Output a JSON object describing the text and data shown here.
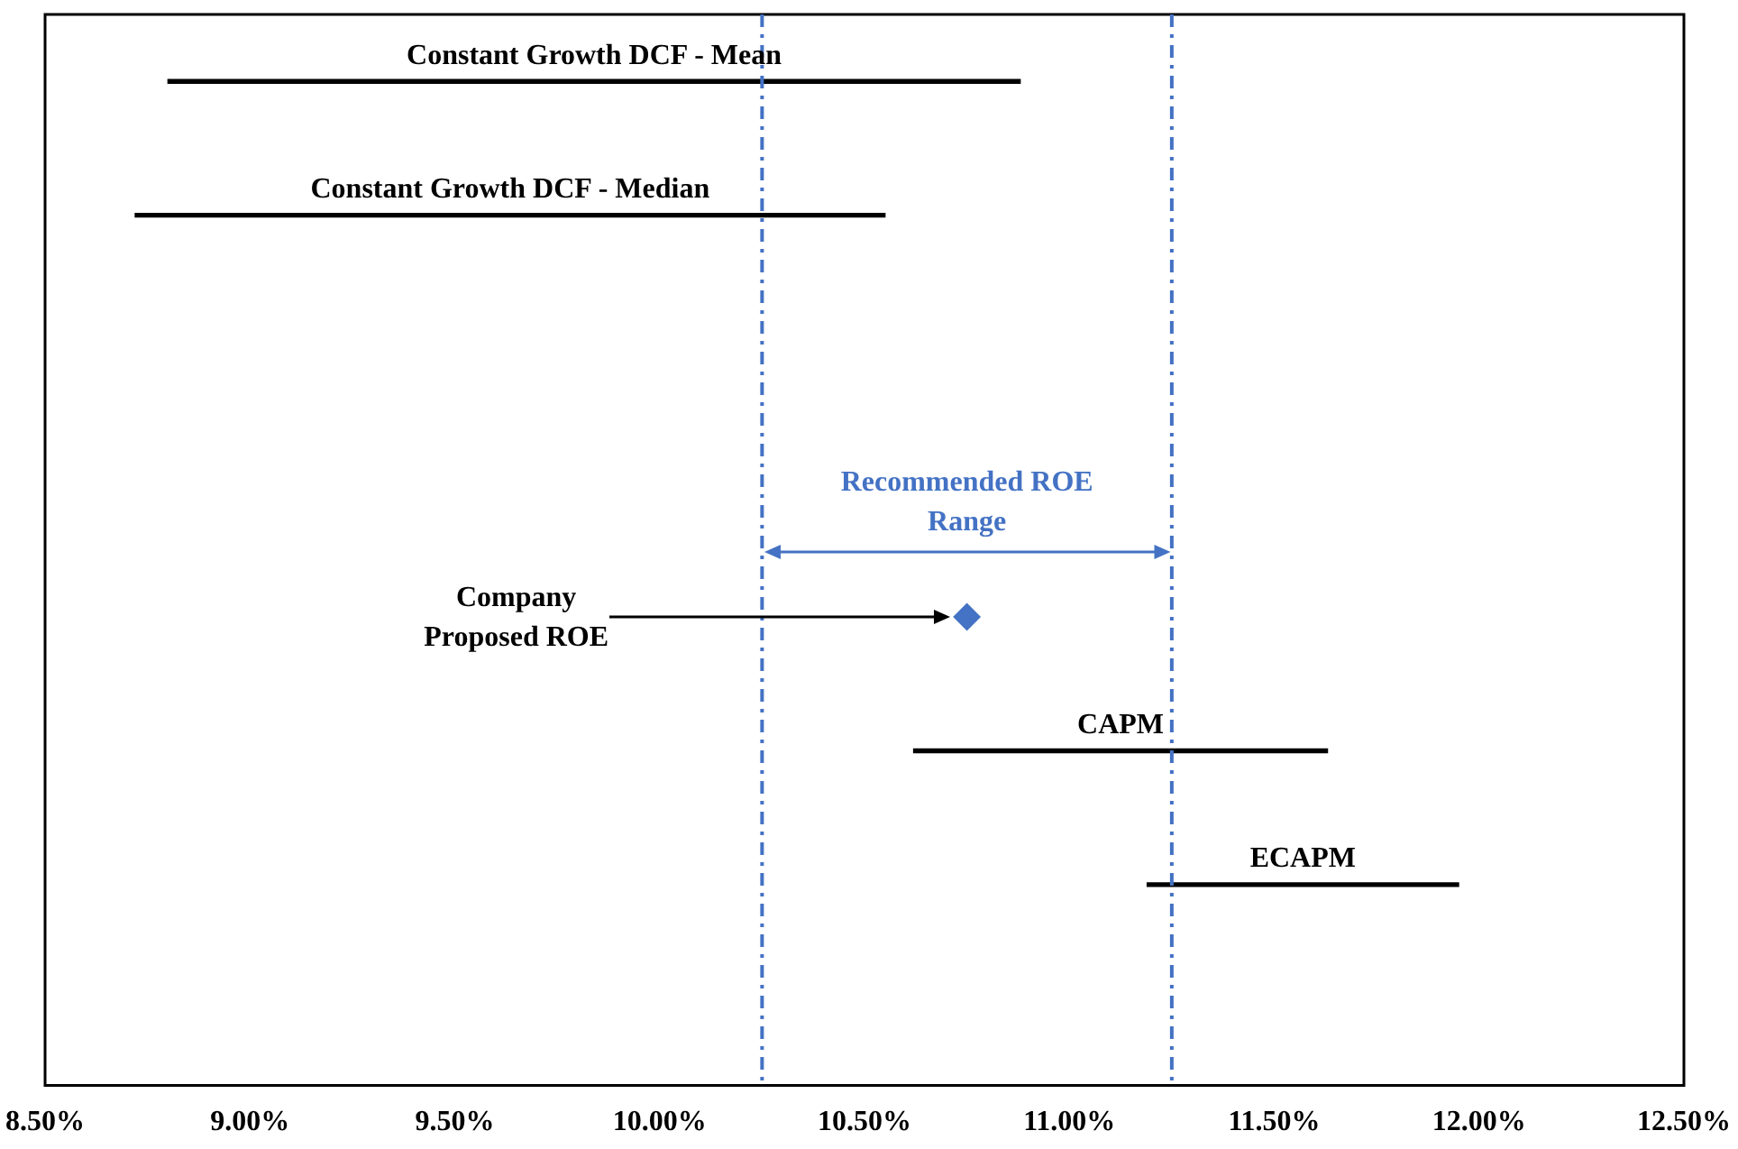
{
  "chart_data": {
    "type": "bar",
    "orientation": "horizontal",
    "categories": [
      "Constant Growth DCF - Mean",
      "Constant Growth DCF - Median",
      null,
      null,
      "Company Proposed ROE",
      "CAPM",
      "ECAPM",
      null
    ],
    "series": [
      {
        "color": "#000000",
        "base": [
          8.8,
          8.72,
          null,
          null,
          null,
          10.62,
          11.19,
          null
        ],
        "values": [
          2.08,
          1.83,
          null,
          null,
          null,
          1.01,
          0.76,
          null
        ]
      },
      {
        "type": "scatter",
        "color": "#4472c4",
        "marker": "diamond",
        "x": [
          "Company Proposed ROE"
        ],
        "values": [
          10.75
        ]
      }
    ],
    "xlim": [
      8.5,
      12.5
    ],
    "xticks": [
      {
        "value": 8.5,
        "label": "8.50%"
      },
      {
        "value": 9,
        "label": "9.00%"
      },
      {
        "value": 9.5,
        "label": "9.50%"
      },
      {
        "value": 10,
        "label": "10.00%"
      },
      {
        "value": 10.5,
        "label": "10.50%"
      },
      {
        "value": 11,
        "label": "11.00%"
      },
      {
        "value": 11.5,
        "label": "11.50%"
      },
      {
        "value": 12,
        "label": "12.00%"
      },
      {
        "value": 12.5,
        "label": "12.50%"
      }
    ],
    "tick_labels": "x",
    "ref_lines": [
      {
        "axis": "x",
        "value": 10.25,
        "color": "#4472c4",
        "line_style": "dashed"
      },
      {
        "axis": "x",
        "value": 11.25,
        "color": "#4472c4",
        "line_style": "dashed"
      }
    ],
    "annotations": [
      "Recommended ROE Range"
    ],
    "grid": false,
    "legend": false
  }
}
